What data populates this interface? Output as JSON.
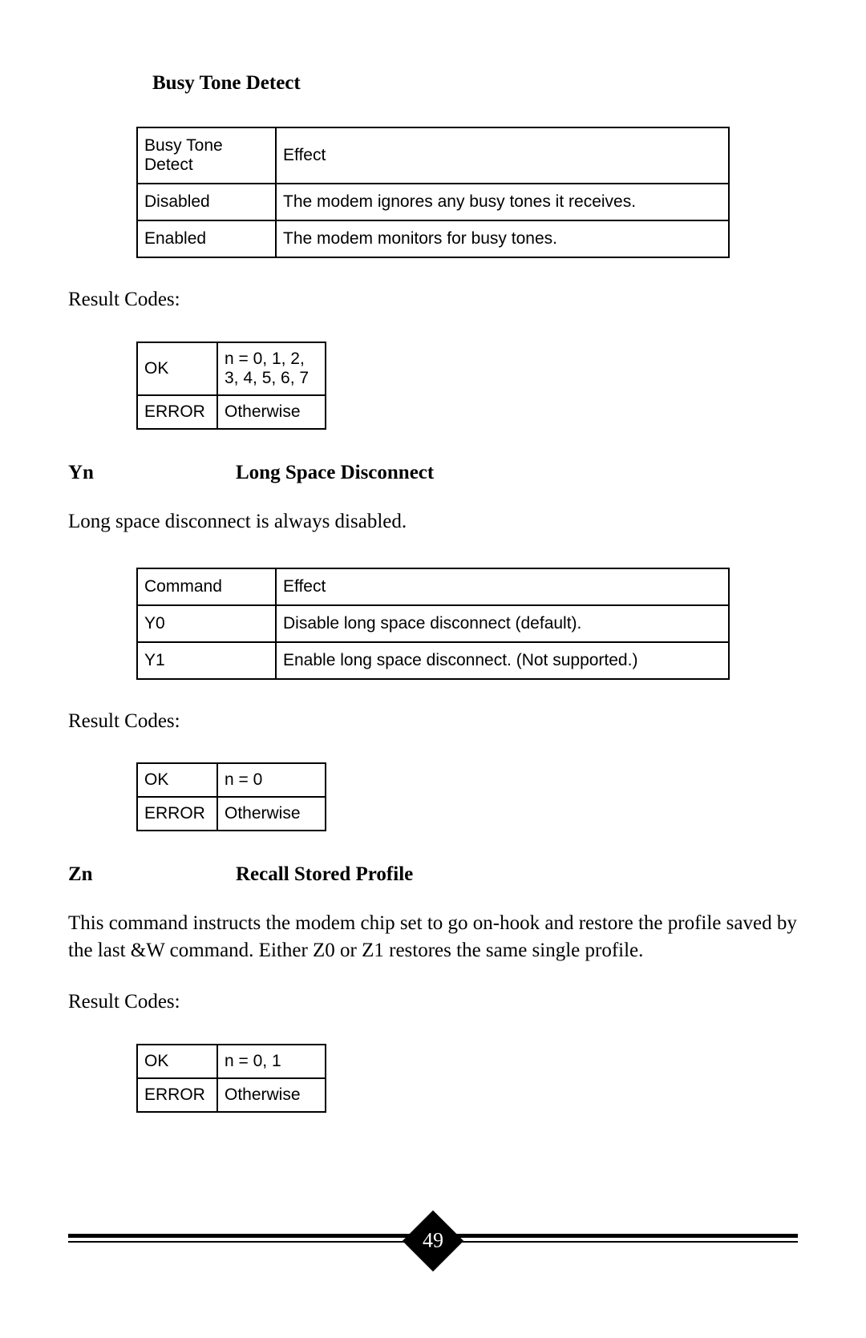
{
  "page_number": "49",
  "section1": {
    "title": "Busy Tone Detect",
    "table": {
      "header": {
        "c1": "Busy Tone Detect",
        "c2": "Effect"
      },
      "rows": [
        {
          "c1": "Disabled",
          "c2": "The modem ignores any busy tones it receives."
        },
        {
          "c1": "Enabled",
          "c2": "The modem monitors for busy tones."
        }
      ]
    },
    "result_label": "Result Codes:",
    "result_table": {
      "rows": [
        {
          "c1": "OK",
          "c2": "n = 0, 1, 2, 3, 4, 5, 6, 7"
        },
        {
          "c1": "ERROR",
          "c2": "Otherwise"
        }
      ]
    }
  },
  "section2": {
    "cmd": "Yn",
    "title": "Long Space Disconnect",
    "body": "Long space disconnect is always disabled.",
    "table": {
      "header": {
        "c1": "Command",
        "c2": "Effect"
      },
      "rows": [
        {
          "c1": "Y0",
          "c2": "Disable long space disconnect (default)."
        },
        {
          "c1": "Y1",
          "c2": "Enable long space disconnect. (Not supported.)"
        }
      ]
    },
    "result_label": "Result Codes:",
    "result_table": {
      "rows": [
        {
          "c1": "OK",
          "c2": "n = 0"
        },
        {
          "c1": "ERROR",
          "c2": "Otherwise"
        }
      ]
    }
  },
  "section3": {
    "cmd": "Zn",
    "title": "Recall Stored Profile",
    "body": "This command instructs the modem chip set to go on-hook and restore the profile saved by the last &W command. Either Z0 or Z1 restores the same single profile.",
    "result_label": "Result Codes:",
    "result_table": {
      "rows": [
        {
          "c1": "OK",
          "c2": "n = 0, 1"
        },
        {
          "c1": "ERROR",
          "c2": "Otherwise"
        }
      ]
    }
  },
  "colors": {
    "text": "#000000",
    "background": "#ffffff",
    "border": "#000000"
  }
}
